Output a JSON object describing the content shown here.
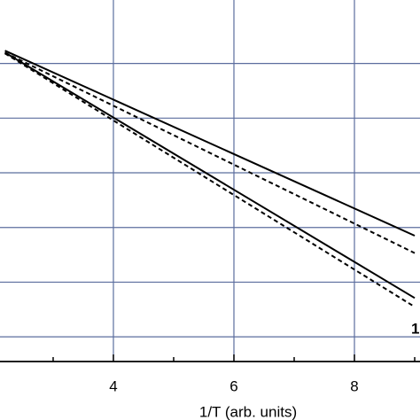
{
  "chart_data": {
    "type": "line",
    "x_label": "1/T (arb. units)",
    "annotation": "1",
    "xlim": [
      2.118,
      9.088
    ],
    "xticks": [
      4,
      6,
      8
    ],
    "xminorticks": [
      3,
      5,
      7,
      9
    ],
    "ylim": [
      0.548,
      7.161
    ],
    "yticks": [
      1,
      2,
      3,
      4,
      5,
      6
    ],
    "grid": true,
    "grid_color": "#5b6d9e",
    "series": [
      {
        "color": "#000000",
        "style": "solid",
        "x": [
          2.2,
          9.0
        ],
        "values": [
          6.234,
          2.85
        ]
      },
      {
        "color": "#000000",
        "style": "dashed",
        "x": [
          2.2,
          9.0
        ],
        "values": [
          6.197,
          2.532
        ]
      },
      {
        "color": "#000000",
        "style": "solid",
        "x": [
          2.2,
          9.0
        ],
        "values": [
          6.2,
          1.71
        ]
      },
      {
        "color": "#000000",
        "style": "dashed",
        "x": [
          2.2,
          9.0
        ],
        "values": [
          6.185,
          1.548
        ]
      }
    ]
  }
}
